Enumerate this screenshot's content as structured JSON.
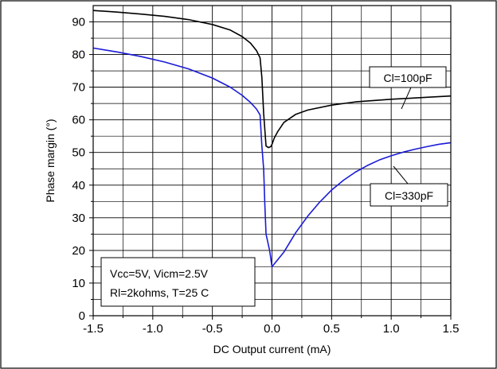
{
  "chart_data": {
    "type": "line",
    "title": "",
    "xlabel": "DC Output current (mA)",
    "ylabel": "Phase margin (°)",
    "xlim": [
      -1.5,
      1.5
    ],
    "ylim": [
      0,
      95
    ],
    "xticks": [
      -1.5,
      -1.0,
      -0.5,
      0.0,
      0.5,
      1.0,
      1.5
    ],
    "xtick_labels": [
      "-1.5",
      "-1.0",
      "-0.5",
      "0.0",
      "0.5",
      "1.0",
      "1.5"
    ],
    "yticks": [
      0,
      10,
      20,
      30,
      40,
      50,
      60,
      70,
      80,
      90
    ],
    "ytick_labels": [
      "0",
      "10",
      "20",
      "30",
      "40",
      "50",
      "60",
      "70",
      "80",
      "90"
    ],
    "grid": true,
    "series": [
      {
        "name": "Cl=100pF",
        "color": "#000000",
        "x": [
          -1.5,
          -1.3,
          -1.1,
          -0.9,
          -0.7,
          -0.5,
          -0.35,
          -0.25,
          -0.18,
          -0.13,
          -0.1,
          -0.085,
          -0.07,
          -0.06,
          -0.05,
          -0.03,
          -0.01,
          0.0,
          0.02,
          0.05,
          0.1,
          0.2,
          0.3,
          0.5,
          0.7,
          1.0,
          1.3,
          1.5
        ],
        "y": [
          93.5,
          93.0,
          92.4,
          91.7,
          90.7,
          89.2,
          87.5,
          85.5,
          83.5,
          81.2,
          79.0,
          73.0,
          62.0,
          57.0,
          52.0,
          51.5,
          51.8,
          52.5,
          54.5,
          56.5,
          59.2,
          61.7,
          63.0,
          64.5,
          65.5,
          66.3,
          66.9,
          67.3
        ]
      },
      {
        "name": "Cl=330pF",
        "color": "#1a1ad6",
        "x": [
          -1.5,
          -1.3,
          -1.1,
          -0.9,
          -0.7,
          -0.5,
          -0.35,
          -0.25,
          -0.18,
          -0.13,
          -0.1,
          -0.085,
          -0.07,
          -0.06,
          -0.05,
          -0.02,
          0.0,
          0.1,
          0.2,
          0.3,
          0.4,
          0.5,
          0.6,
          0.7,
          0.8,
          0.9,
          1.0,
          1.1,
          1.2,
          1.3,
          1.4,
          1.5
        ],
        "y": [
          82.0,
          80.8,
          79.4,
          77.7,
          75.6,
          72.8,
          70.0,
          67.5,
          65.3,
          63.3,
          61.5,
          52.0,
          45.0,
          34.0,
          25.0,
          20.0,
          15.0,
          19.5,
          25.5,
          30.5,
          34.8,
          38.5,
          41.5,
          44.0,
          46.0,
          47.7,
          49.0,
          50.1,
          51.0,
          51.8,
          52.5,
          53.0
        ]
      }
    ],
    "annotations": [
      {
        "text": "Cl=100pF",
        "target_series": 0,
        "target_x": 1.1
      },
      {
        "text": "Cl=330pF",
        "target_series": 1,
        "target_x": 1.1
      }
    ],
    "conditions_box": {
      "line1": "Vcc=5V, Vicm=2.5V",
      "line2": "Rl=2kohms, T=25 C"
    }
  }
}
